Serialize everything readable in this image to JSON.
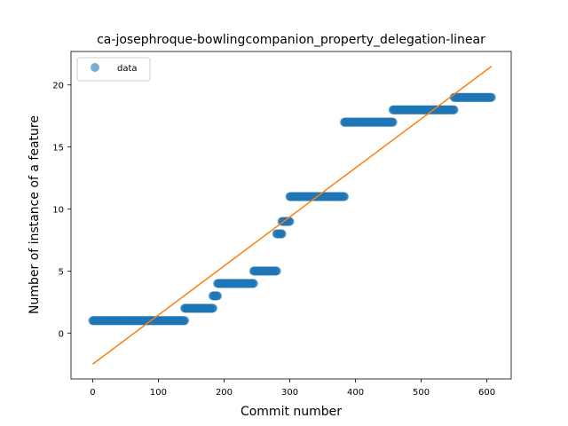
{
  "chart_data": {
    "type": "scatter",
    "title": "ca-josephroque-bowlingcompanion_property_delegation-linear",
    "xlabel": "Commit number",
    "ylabel": "Number of instance of a feature",
    "xlim": [
      -33,
      637
    ],
    "ylim": [
      -3.7,
      22.7
    ],
    "xticks": [
      0,
      100,
      200,
      300,
      400,
      500,
      600
    ],
    "yticks": [
      0,
      5,
      10,
      15,
      20
    ],
    "grid": false,
    "legend": {
      "placement": "top-left",
      "entries": [
        "data"
      ]
    },
    "colors": {
      "data": "#1f77b4",
      "fit": "#ff7f0e"
    },
    "series": [
      {
        "name": "data",
        "style": "points",
        "segments": [
          {
            "x_start": 0,
            "x_end": 140,
            "y": 1
          },
          {
            "x_start": 140,
            "x_end": 183,
            "y": 2
          },
          {
            "x_start": 183,
            "x_end": 190,
            "y": 3
          },
          {
            "x_start": 190,
            "x_end": 245,
            "y": 4
          },
          {
            "x_start": 245,
            "x_end": 280,
            "y": 5
          },
          {
            "x_start": 280,
            "x_end": 288,
            "y": 8
          },
          {
            "x_start": 288,
            "x_end": 300,
            "y": 9
          },
          {
            "x_start": 300,
            "x_end": 383,
            "y": 11
          },
          {
            "x_start": 383,
            "x_end": 457,
            "y": 17
          },
          {
            "x_start": 457,
            "x_end": 550,
            "y": 18
          },
          {
            "x_start": 550,
            "x_end": 607,
            "y": 19
          }
        ]
      },
      {
        "style": "line",
        "x": [
          0,
          607
        ],
        "y": [
          -2.5,
          21.5
        ]
      }
    ]
  }
}
